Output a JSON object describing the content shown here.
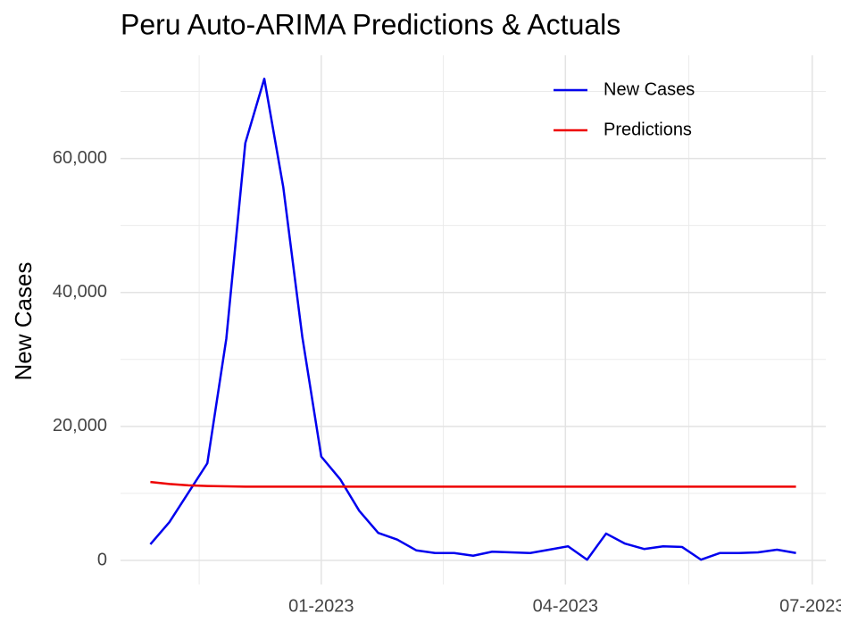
{
  "chart_data": {
    "type": "line",
    "title": "Peru Auto-ARIMA Predictions & Actuals",
    "y_label": "New Cases",
    "x": [
      "2022-10-30",
      "2022-11-06",
      "2022-11-13",
      "2022-11-20",
      "2022-11-27",
      "2022-12-04",
      "2022-12-11",
      "2022-12-18",
      "2022-12-25",
      "2023-01-01",
      "2023-01-08",
      "2023-01-15",
      "2023-01-22",
      "2023-01-29",
      "2023-02-05",
      "2023-02-12",
      "2023-02-19",
      "2023-02-26",
      "2023-03-05",
      "2023-03-12",
      "2023-03-19",
      "2023-03-26",
      "2023-04-02",
      "2023-04-09",
      "2023-04-16",
      "2023-04-23",
      "2023-04-30",
      "2023-05-07",
      "2023-05-14",
      "2023-05-21",
      "2023-05-28",
      "2023-06-04",
      "2023-06-11",
      "2023-06-18",
      "2023-06-25"
    ],
    "series": [
      {
        "name": "New Cases",
        "color": "#0000ee",
        "values": [
          2400,
          5700,
          10100,
          14500,
          33100,
          62300,
          71900,
          55700,
          33400,
          15500,
          12100,
          7400,
          4100,
          3100,
          1500,
          1100,
          1100,
          700,
          1300,
          1200,
          1100,
          1600,
          2100,
          100,
          4000,
          2500,
          1700,
          2100,
          2000,
          100,
          1100,
          1100,
          1200,
          1600,
          1100
        ]
      },
      {
        "name": "Predictions",
        "color": "#ee0000",
        "values": [
          11700,
          11400,
          11200,
          11100,
          11050,
          11000,
          11000,
          11000,
          11000,
          11000,
          11000,
          11000,
          11000,
          11000,
          11000,
          11000,
          11000,
          11000,
          11000,
          11000,
          11000,
          11000,
          11000,
          11000,
          11000,
          11000,
          11000,
          11000,
          11000,
          11000,
          11000,
          11000,
          11000,
          11000,
          11000
        ]
      }
    ],
    "xlim": [
      "2022-10-19",
      "2023-07-06"
    ],
    "xticks": [
      {
        "value": "2023-01-01",
        "label": "01-2023"
      },
      {
        "value": "2023-04-01",
        "label": "04-2023"
      },
      {
        "value": "2023-07-01",
        "label": "07-2023"
      }
    ],
    "ylim": [
      -3600,
      75400
    ],
    "yticks": [
      {
        "value": 0,
        "label": "0"
      },
      {
        "value": 20000,
        "label": "20,000"
      },
      {
        "value": 40000,
        "label": "40,000"
      },
      {
        "value": 60000,
        "label": "60,000"
      }
    ],
    "grid": true,
    "legend": "top-right"
  }
}
